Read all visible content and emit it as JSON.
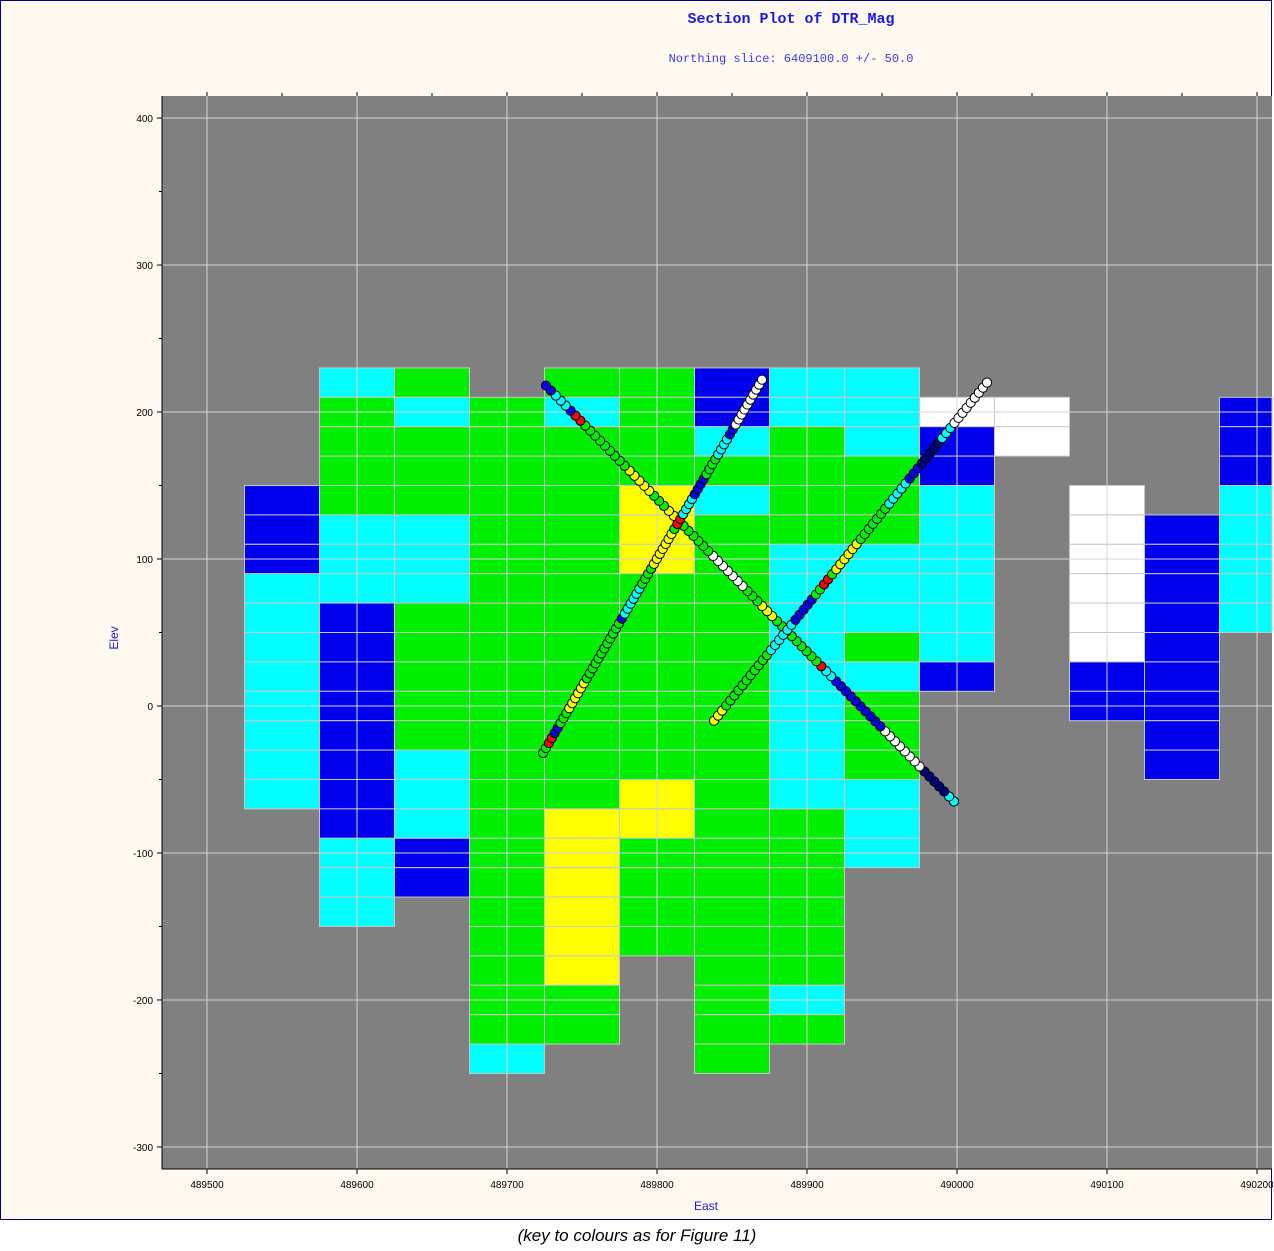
{
  "chart_data": {
    "type": "heatmap",
    "title": "Section Plot of DTR_Mag",
    "subtitle": "Northing slice: 6409100.0 +/- 50.0",
    "xlabel": "East",
    "ylabel": "Elev",
    "xlim": [
      489470,
      490210
    ],
    "ylim": [
      -315,
      415
    ],
    "xticks": [
      489500,
      489600,
      489700,
      489800,
      489900,
      490000,
      490100,
      490200
    ],
    "yticks": [
      400,
      300,
      200,
      100,
      0,
      -100,
      -200,
      -300
    ],
    "grid": true,
    "background": "#808080",
    "colors": {
      "B": "#0000ee",
      "C": "#00ffff",
      "G": "#00ee00",
      "Y": "#ffff00",
      "W": "#ffffff",
      "R": "#ff0000",
      "K": "#000080"
    },
    "block_width": 50,
    "block_height": 20,
    "blocks": [
      {
        "x": 489550,
        "top": 150,
        "codes": "BBBCCCCCCCC"
      },
      {
        "x": 489600,
        "top": 230,
        "codes": "CGGGGCCCBBBBBBBBCCC"
      },
      {
        "x": 489650,
        "top": 230,
        "codes": "GCGGGCCCGGGGGCCCBB"
      },
      {
        "x": 489700,
        "top": 210,
        "codes": "GGGGGGGGGGGGGGGGGGGGGGC"
      },
      {
        "x": 489750,
        "top": 230,
        "codes": "GCGGGGGGGGGGGGGYYYYYYGG"
      },
      {
        "x": 489800,
        "top": 230,
        "codes": "GGGGYYYGGGGGGGYYGGGG"
      },
      {
        "x": 489850,
        "top": 230,
        "codes": "BBCGCGGGGGGGGGGGGGGGGGGG"
      },
      {
        "x": 489900,
        "top": 230,
        "codes": "CCGGGGCCCCCCCCCGGGGGGCG"
      },
      {
        "x": 489950,
        "top": 230,
        "codes": "CCCGGGCCCGCGGGCCC"
      },
      {
        "x": 490000,
        "top": 210,
        "codes": "WBBCCCCCCB"
      },
      {
        "x": 490050,
        "top": 210,
        "codes": "WW"
      },
      {
        "x": 490100,
        "top": 150,
        "codes": "WWWWWWBB"
      },
      {
        "x": 490150,
        "top": 130,
        "codes": "BBBBBBBBB"
      },
      {
        "x": 490200,
        "top": 210,
        "codes": "BBBCCCCC"
      }
    ],
    "drillholes": [
      {
        "start": [
          489998,
          -65
        ],
        "end": [
          489726,
          218
        ],
        "codes": "CCKKKKKWWWWWWWWBBBBBBBBBBCCRGGGGGGGGGYYYGGGWWWWWWWGGGGGGGYYGGGYYYYYGGGGGGGGGRRBCCCBB"
      },
      {
        "start": [
          489724,
          -32
        ],
        "end": [
          489870,
          222
        ],
        "codes": "GGRRBBGGGYYYYYYGGGGGGGGGGGGBCCCCCCGGGGYYYYYYYGRRCCCCBBBBGGGGCCCCBBWWWWWWWWWW"
      },
      {
        "start": [
          489838,
          -10
        ],
        "end": [
          490020,
          220
        ],
        "codes": "YYYGGGGGGGGGGGCCCCCCBBBBBGGRRGYYYYYYGGGGGGGCCCCCBBBKKKKKCCCWWWWWWWWW"
      }
    ],
    "caption": "(key to colours as for Figure 11)"
  }
}
